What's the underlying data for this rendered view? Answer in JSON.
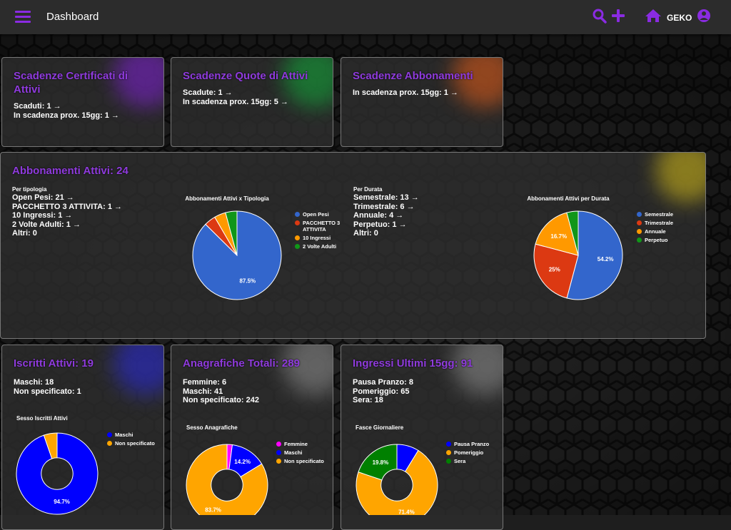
{
  "header": {
    "title": "Dashboard",
    "user": "GEKO"
  },
  "cards": [
    {
      "title": "Scadenze Certificati di Attivi",
      "sections": [
        {
          "lines": [
            "Scaduti: 1 →",
            "In scadenza prox. 15gg: 1 →"
          ]
        }
      ]
    },
    {
      "title": "Scadenze Quote di Attivi",
      "sections": [
        {
          "lines": [
            "Scadute: 1 →",
            "In scadenza prox. 15gg: 5 →"
          ]
        }
      ]
    },
    {
      "title": "Scadenze Abbonamenti",
      "sections": [
        {
          "lines": [
            "In scadenza prox. 15gg: 1 →"
          ]
        }
      ]
    },
    {
      "title": "Abbonamenti Attivi: 24",
      "sections": [
        {
          "heading": "Per tipologia",
          "lines": [
            "Open Pesi: 21 →",
            "PACCHETTO 3 ATTIVITA: 1 →",
            "10 Ingressi: 1 →",
            "2 Volte Adulti: 1 →",
            "Altri: 0"
          ]
        },
        {
          "heading": "Per Durata",
          "lines": [
            "Semestrale: 13 →",
            "Trimestrale: 6 →",
            "Annuale: 4 →",
            "Perpetuo: 1 →",
            "Altri: 0"
          ]
        }
      ],
      "charts": [
        {
          "type": "pie",
          "title": "Abbonamenti Attivi x Tipologia",
          "categories": [
            "Open Pesi",
            "PACCHETTO 3 ATTIVITA",
            "10 Ingressi",
            "2 Volte Adulti"
          ],
          "values": [
            87.5,
            4.2,
            4.2,
            4.2
          ],
          "value_labels": [
            "87.5%",
            null,
            null,
            null
          ],
          "colors": [
            "#3366cc",
            "#dc3912",
            "#ff9900",
            "#109618"
          ]
        },
        {
          "type": "pie",
          "title": "Abbonamenti Attivi per Durata",
          "categories": [
            "Semestrale",
            "Trimestrale",
            "Annuale",
            "Perpetuo"
          ],
          "values": [
            54.2,
            25,
            16.7,
            4.2
          ],
          "value_labels": [
            "54.2%",
            "25%",
            "16.7%",
            null
          ],
          "colors": [
            "#3366cc",
            "#dc3912",
            "#ff9900",
            "#109618"
          ]
        }
      ]
    },
    {
      "title": "Iscritti Attivi: 19",
      "sections": [
        {
          "lines": [
            "Maschi: 18",
            "Non specificato: 1"
          ]
        }
      ],
      "charts": [
        {
          "type": "donut",
          "title": "Sesso Iscritti Attivi",
          "categories": [
            "Maschi",
            "Non specificato"
          ],
          "values": [
            94.7,
            5.3
          ],
          "value_labels": [
            "94.7%",
            null
          ],
          "colors": [
            "#0000ff",
            "#ffa500"
          ]
        }
      ]
    },
    {
      "title": "Anagrafiche Totali: 289",
      "sections": [
        {
          "lines": [
            "Femmine: 6",
            "Maschi: 41",
            "Non specificato: 242"
          ]
        }
      ],
      "charts": [
        {
          "type": "donut",
          "title": "Sesso Anagrafiche",
          "categories": [
            "Femmine",
            "Maschi",
            "Non specificato"
          ],
          "values": [
            2.1,
            14.2,
            83.7
          ],
          "value_labels": [
            null,
            "14.2%",
            "83.7%"
          ],
          "colors": [
            "#ff00ff",
            "#0000ff",
            "#ffa500"
          ]
        }
      ]
    },
    {
      "title": "Ingressi Ultimi 15gg: 91",
      "sections": [
        {
          "lines": [
            "Pausa Pranzo: 8",
            "Pomeriggio: 65",
            "Sera: 18"
          ]
        }
      ],
      "charts": [
        {
          "type": "donut",
          "title": "Fasce Giornaliere",
          "categories": [
            "Pausa Pranzo",
            "Pomeriggio",
            "Sera"
          ],
          "values": [
            8.8,
            71.4,
            19.8
          ],
          "value_labels": [
            null,
            "71.4%",
            "19.8%"
          ],
          "colors": [
            "#0000ff",
            "#ffa500",
            "#008000"
          ]
        }
      ]
    }
  ]
}
